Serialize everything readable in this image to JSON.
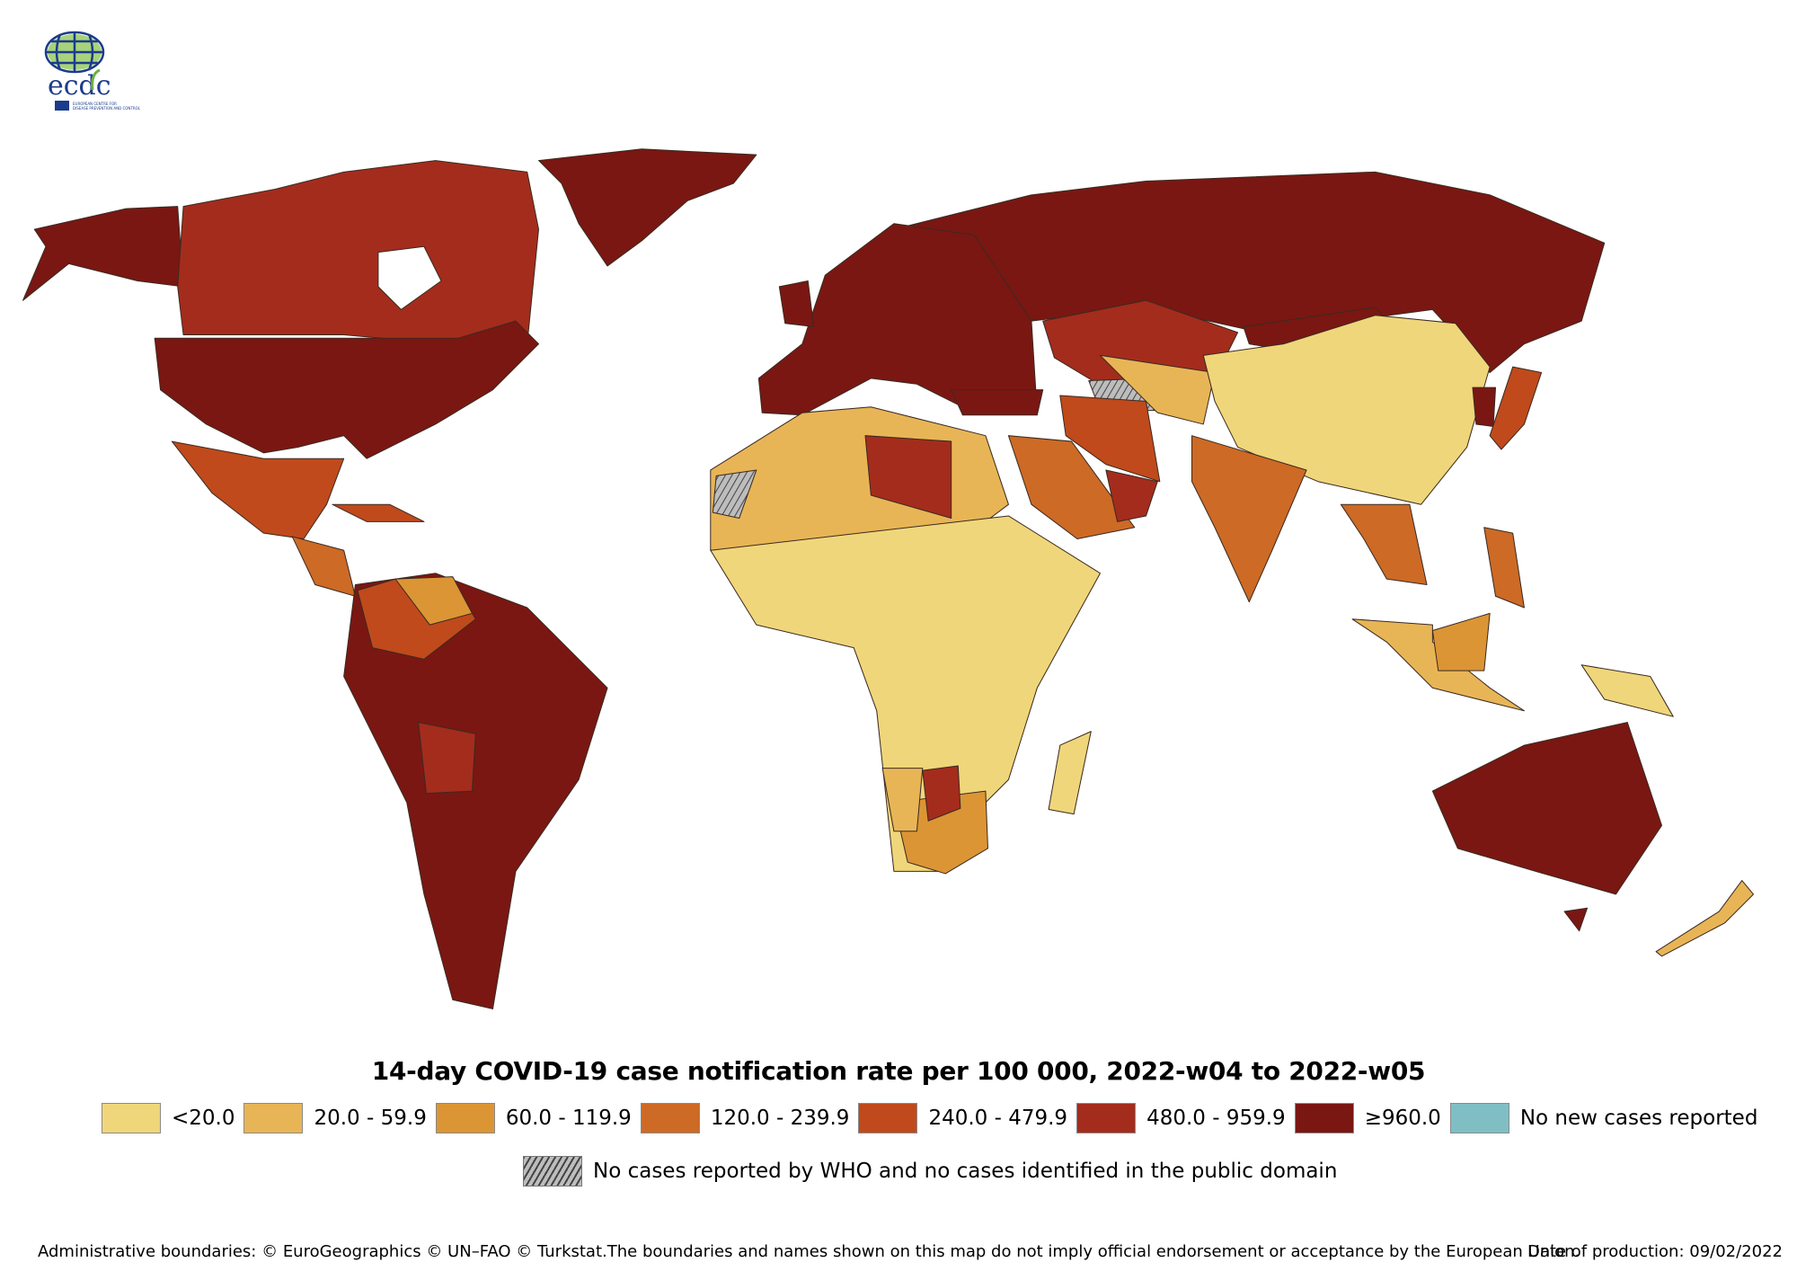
{
  "logo": {
    "text": "ecdc",
    "subtitle": "EUROPEAN CENTRE FOR DISEASE PREVENTION AND CONTROL"
  },
  "title": "14-day COVID-19 case notification rate per 100 000, 2022-w04 to 2022-w05",
  "legend": [
    {
      "label": "<20.0",
      "color": "#f0d67a"
    },
    {
      "label": "20.0 - 59.9",
      "color": "#e8b556"
    },
    {
      "label": "60.0 - 119.9",
      "color": "#dc9535"
    },
    {
      "label": "120.0 - 239.9",
      "color": "#cd6a25"
    },
    {
      "label": "240.0 - 479.9",
      "color": "#c04a1b"
    },
    {
      "label": "480.0 - 959.9",
      "color": "#a42c1c"
    },
    {
      "label": "≥960.0",
      "color": "#7a1712"
    },
    {
      "label": "No new cases reported",
      "color": "#7fbfc4"
    }
  ],
  "legend_hatched": {
    "label": "No cases reported by WHO and no cases identified in the public domain"
  },
  "footer": {
    "attribution": "Administrative boundaries: © EuroGeographics © UN–FAO © Turkstat.The boundaries and names shown on this map do not imply official endorsement or acceptance by the European Union.",
    "date": "Date of production: 09/02/2022"
  }
}
